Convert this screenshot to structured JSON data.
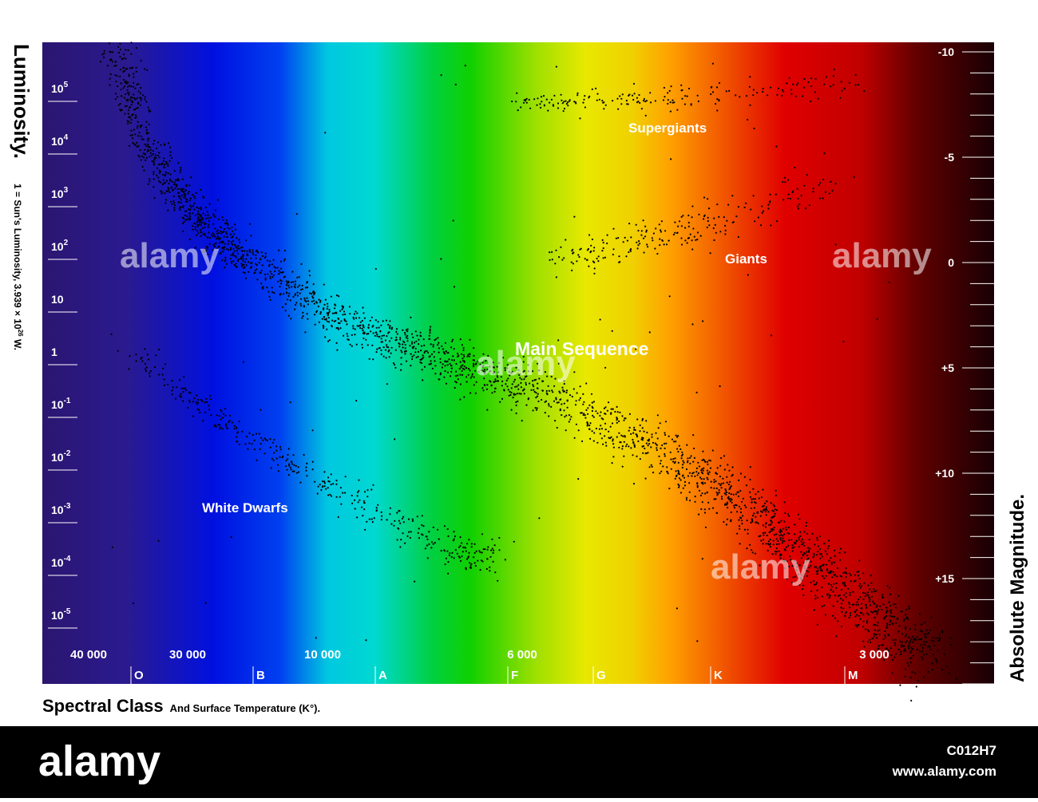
{
  "diagram": {
    "luminosity_title": "Luminosity.",
    "luminosity_note": {
      "text": "1 = Sun's Luminosity, 3.939 × 10",
      "sup": "26",
      "tail": " W."
    },
    "magnitude_title": "Absolute Magnitude.",
    "spectral_title": "Spectral Class",
    "spectral_subtitle": "And Surface Temperature (K°).",
    "luminosity_labels": [
      {
        "text": "10",
        "sup": "5"
      },
      {
        "text": "10",
        "sup": "4"
      },
      {
        "text": "10",
        "sup": "3"
      },
      {
        "text": "10",
        "sup": "2"
      },
      {
        "text": "10"
      },
      {
        "text": "1"
      },
      {
        "text": "10",
        "sup": "-1"
      },
      {
        "text": "10",
        "sup": "-2"
      },
      {
        "text": "10",
        "sup": "-3"
      },
      {
        "text": "10",
        "sup": "-4"
      },
      {
        "text": "10",
        "sup": "-5"
      }
    ],
    "magnitude_labels": [
      "-10",
      "-5",
      "0",
      "+5",
      "+10",
      "+15"
    ],
    "temperature_labels": [
      "40 000",
      "30 000",
      "10 000",
      "6 000",
      "3 000"
    ],
    "spectral_classes": [
      "O",
      "B",
      "A",
      "F",
      "G",
      "K",
      "M"
    ],
    "regions": {
      "supergiants": "Supergiants",
      "giants": "Giants",
      "main_sequence": "Main Sequence",
      "white_dwarfs": "White Dwarfs"
    },
    "watermark": "alamy",
    "footer": {
      "brand": "alamy",
      "image_id": "C012H7",
      "url": "www.alamy.com"
    }
  }
}
